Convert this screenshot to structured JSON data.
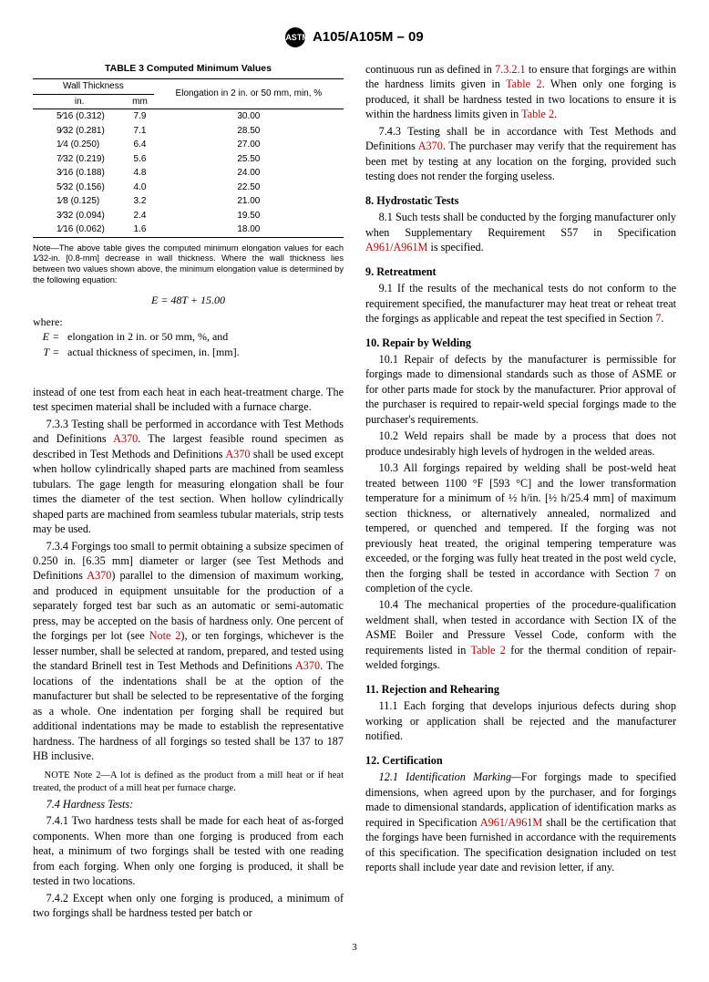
{
  "header": {
    "logo_text": "ASTM",
    "title": "A105/A105M – 09"
  },
  "table3": {
    "title": "TABLE 3   Computed Minimum Values",
    "group1": "Wall Thickness",
    "group2": "Elongation in 2 in. or 50 mm, min, %",
    "col_in": "in.",
    "col_mm": "mm",
    "rows": [
      {
        "in": "5⁄16  (0.312)",
        "mm": "7.9",
        "e": "30.00"
      },
      {
        "in": "9⁄32  (0.281)",
        "mm": "7.1",
        "e": "28.50"
      },
      {
        "in": "1⁄4  (0.250)",
        "mm": "6.4",
        "e": "27.00"
      },
      {
        "in": "7⁄32  (0.219)",
        "mm": "5.6",
        "e": "25.50"
      },
      {
        "in": "3⁄16  (0.188)",
        "mm": "4.8",
        "e": "24.00"
      },
      {
        "in": "5⁄32  (0.156)",
        "mm": "4.0",
        "e": "22.50"
      },
      {
        "in": "1⁄8  (0.125)",
        "mm": "3.2",
        "e": "21.00"
      },
      {
        "in": "3⁄32  (0.094)",
        "mm": "2.4",
        "e": "19.50"
      },
      {
        "in": "1⁄16  (0.062)",
        "mm": "1.6",
        "e": "18.00"
      }
    ],
    "note": "Note—The above table gives the computed minimum elongation values for each 1⁄32-in. [0.8-mm] decrease in wall thickness. Where the wall thickness lies between two values shown above, the minimum elongation value is determined by the following equation:",
    "equation": "E = 48T + 15.00",
    "where": "where:",
    "def_E": "elongation in 2 in. or 50 mm, %, and",
    "def_T": "actual thickness of specimen, in. [mm]."
  },
  "left": {
    "p_instead": "instead of one test from each heat in each heat-treatment charge. The test specimen material shall be included with a furnace charge.",
    "p_733a": "7.3.3 Testing shall be performed in accordance with Test Methods and Definitions ",
    "a370_1": "A370",
    "p_733b": ". The largest feasible round specimen as described in Test Methods and Definitions ",
    "a370_2": "A370",
    "p_733c": " shall be used except when hollow cylindrically shaped parts are machined from seamless tubulars. The gage length for measuring elongation shall be four times the diameter of the test section. When hollow cylindrically shaped parts are machined from seamless tubular materials, strip tests may be used.",
    "p_734a": "7.3.4 Forgings too small to permit obtaining a subsize specimen of 0.250 in. [6.35 mm] diameter or larger (see Test Methods and Definitions ",
    "a370_3": "A370",
    "p_734b": ") parallel to the dimension of maximum working, and produced in equipment unsuitable for the production of a separately forged test bar such as an automatic or semi-automatic press, may be accepted on the basis of hardness only. One percent of the forgings per lot (see ",
    "note2_ref": "Note 2",
    "p_734c": "), or ten forgings, whichever is the lesser number, shall be selected at random, prepared, and tested using the standard Brinell test in Test Methods and Definitions ",
    "a370_4": "A370",
    "p_734d": ". The locations of the indentations shall be at the option of the manufacturer but shall be selected to be representative of the forging as a whole. One indentation per forging shall be required but additional indentations may be made to establish the representative hardness. The hardness of all forgings so tested shall be 137 to 187 HB inclusive.",
    "note2": "Note 2—A lot is defined as the product from a mill heat or if heat treated, the product of a mill heat per furnace charge.",
    "h_74": "7.4 Hardness Tests:",
    "p_741": "7.4.1 Two hardness tests shall be made for each heat of as-forged components. When more than one forging is produced from each heat, a minimum of two forgings shall be tested with one reading from each forging. When only one forging is produced, it shall be tested in two locations.",
    "p_742": "7.4.2 Except when only one forging is produced, a minimum of two forgings shall be hardness tested per batch or"
  },
  "right": {
    "p_742c_a": "continuous run as defined in ",
    "ref_7321": "7.3.2.1",
    "p_742c_b": " to ensure that forgings are within the hardness limits given in ",
    "tab2_1": "Table 2",
    "p_742c_c": ". When only one forging is produced, it shall be hardness tested in two locations to ensure it is within the hardness limits given in ",
    "tab2_2": "Table 2",
    "p_742c_d": ".",
    "p_743a": "7.4.3 Testing shall be in accordance with Test Methods and Definitions ",
    "a370_5": "A370",
    "p_743b": ". The purchaser may verify that the requirement has been met by testing at any location on the forging, provided such testing does not render the forging useless.",
    "h8": "8. Hydrostatic Tests",
    "p_81a": "8.1 Such tests shall be conducted by the forging manufacturer only when Supplementary Requirement S57 in Specification ",
    "a961_1": "A961/A961M",
    "p_81b": " is specified.",
    "h9": "9. Retreatment",
    "p_91a": "9.1 If the results of the mechanical tests do not conform to the requirement specified, the manufacturer may heat treat or reheat treat the forgings as applicable and repeat the test specified in Section ",
    "sec7_1": "7",
    "p_91b": ".",
    "h10": "10. Repair by Welding",
    "p_101": "10.1 Repair of defects by the manufacturer is permissible for forgings made to dimensional standards such as those of ASME or for other parts made for stock by the manufacturer. Prior approval of the purchaser is required to repair-weld special forgings made to the purchaser's requirements.",
    "p_102": "10.2 Weld repairs shall be made by a process that does not produce undesirably high levels of hydrogen in the welded areas.",
    "p_103a": "10.3 All forgings repaired by welding shall be post-weld heat treated between 1100 °F [593 °C] and the lower transformation temperature for a minimum of ½  h/in. [½ h/25.4 mm] of maximum section thickness, or alternatively annealed, normalized and tempered, or quenched and tempered. If the forging was not previously heat treated, the original tempering temperature was exceeded, or the forging was fully heat treated in the post weld cycle, then the forging shall be tested in accordance with Section ",
    "sec7_2": "7",
    "p_103b": " on completion of the cycle.",
    "p_104a": "10.4 The mechanical properties of the procedure-qualification weldment shall, when tested in accordance with Section IX of the ASME Boiler and Pressure Vessel Code, conform with the requirements listed in ",
    "tab2_3": "Table 2",
    "p_104b": " for the thermal condition of repair-welded forgings.",
    "h11": "11. Rejection and Rehearing",
    "p_111": "11.1 Each forging that develops injurious defects during shop working or application shall be rejected and the manufacturer notified.",
    "h12": "12. Certification",
    "p_121a": "12.1 Identification Marking—",
    "p_121b": "For forgings made to specified dimensions, when agreed upon by the purchaser, and for forgings made to dimensional standards, application of identification marks as required in Specification ",
    "a961_2": "A961/A961M",
    "p_121c": " shall be the certification that the forgings have been furnished in accordance with the requirements of this specification. The specification designation included on test reports shall include year date and revision letter, if any."
  },
  "pagenum": "3"
}
